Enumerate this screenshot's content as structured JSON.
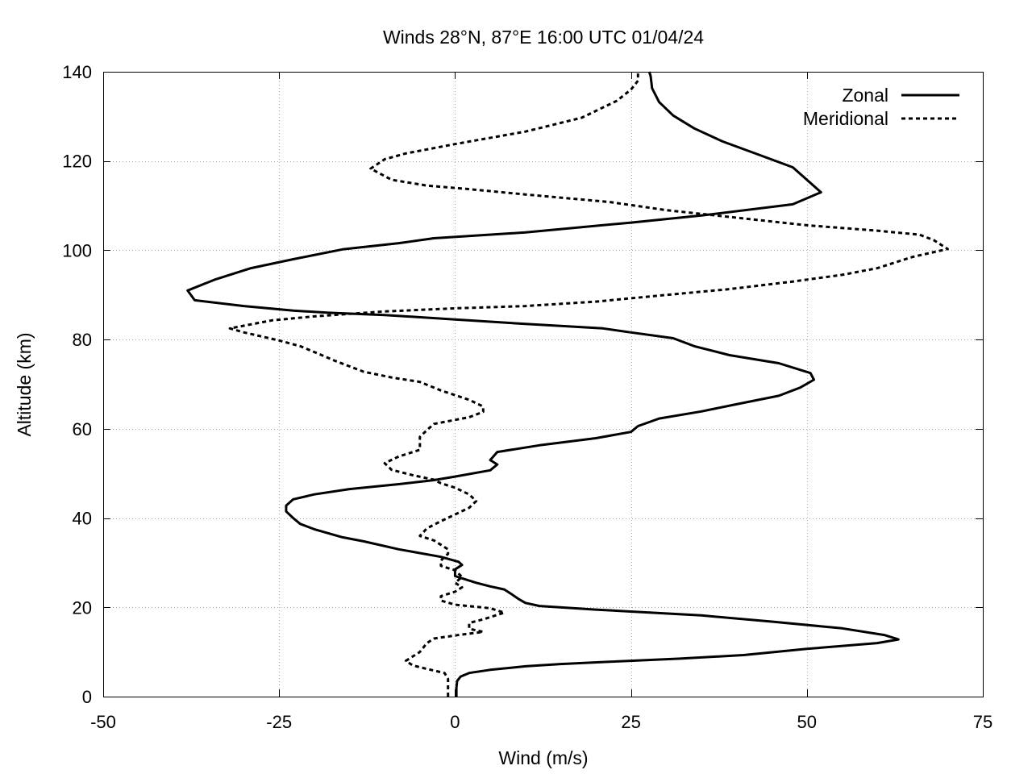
{
  "chart_data": {
    "type": "line",
    "title": "Winds 28°N, 87°E 16:00 UTC 01/04/24",
    "xlabel": "Wind (m/s)",
    "ylabel": "Altitude (km)",
    "xlim": [
      -50,
      75
    ],
    "ylim": [
      0,
      140
    ],
    "xticks": [
      -50,
      -25,
      0,
      25,
      50,
      75
    ],
    "yticks": [
      0,
      20,
      40,
      60,
      80,
      100,
      120,
      140
    ],
    "xtick_labels": [
      "-50",
      "-25",
      "0",
      "25",
      "50",
      "75"
    ],
    "ytick_labels": [
      "0",
      "20",
      "40",
      "60",
      "80",
      "100",
      "120",
      "140"
    ],
    "grid": true,
    "legend": "top-right",
    "series": [
      {
        "name": "Zonal",
        "style": "solid",
        "color": "#000000",
        "points": [
          [
            0.2,
            0
          ],
          [
            0.2,
            2
          ],
          [
            0.3,
            3.5
          ],
          [
            0.8,
            4.5
          ],
          [
            2,
            5.3
          ],
          [
            5,
            6
          ],
          [
            10,
            6.8
          ],
          [
            15,
            7.3
          ],
          [
            22,
            7.8
          ],
          [
            32,
            8.5
          ],
          [
            41,
            9.3
          ],
          [
            50,
            10.7
          ],
          [
            60,
            12
          ],
          [
            63,
            12.8
          ],
          [
            61,
            13.8
          ],
          [
            55,
            15.3
          ],
          [
            45,
            16.8
          ],
          [
            35,
            18.2
          ],
          [
            20,
            19.5
          ],
          [
            12,
            20.3
          ],
          [
            10,
            21
          ],
          [
            9,
            21.9
          ],
          [
            8,
            23
          ],
          [
            7,
            24
          ],
          [
            5,
            24.7
          ],
          [
            3,
            25.5
          ],
          [
            1,
            26.5
          ],
          [
            0,
            27
          ],
          [
            0,
            28.5
          ],
          [
            1,
            29.5
          ],
          [
            0.5,
            30.2
          ],
          [
            -2,
            31.3
          ],
          [
            -8,
            33
          ],
          [
            -13,
            34.8
          ],
          [
            -16,
            35.7
          ],
          [
            -20,
            37.5
          ],
          [
            -22,
            38.7
          ],
          [
            -23,
            40
          ],
          [
            -24,
            41.5
          ],
          [
            -24,
            42.8
          ],
          [
            -23,
            44.2
          ],
          [
            -20,
            45.3
          ],
          [
            -15,
            46.5
          ],
          [
            -8,
            47.6
          ],
          [
            -3,
            48.5
          ],
          [
            0,
            49.3
          ],
          [
            5,
            50.7
          ],
          [
            6,
            52
          ],
          [
            5,
            53
          ],
          [
            6,
            54.8
          ],
          [
            12,
            56.3
          ],
          [
            20,
            57.9
          ],
          [
            25,
            59.3
          ],
          [
            26,
            60.6
          ],
          [
            29,
            62.3
          ],
          [
            35,
            63.9
          ],
          [
            40,
            65.5
          ],
          [
            46,
            67.4
          ],
          [
            49,
            69.2
          ],
          [
            51,
            71
          ],
          [
            50.5,
            72.5
          ],
          [
            46,
            74.7
          ],
          [
            39,
            76.5
          ],
          [
            34,
            78.5
          ],
          [
            31,
            80.3
          ],
          [
            25,
            81.6
          ],
          [
            21,
            82.5
          ],
          [
            10,
            83.5
          ],
          [
            0,
            84.5
          ],
          [
            -10,
            85.5
          ],
          [
            -18,
            86
          ],
          [
            -23,
            86.5
          ],
          [
            -30,
            87.5
          ],
          [
            -37,
            88.8
          ],
          [
            -38,
            91
          ],
          [
            -34,
            93.5
          ],
          [
            -29,
            96
          ],
          [
            -23,
            98
          ],
          [
            -16,
            100.2
          ],
          [
            -8,
            101.6
          ],
          [
            -3,
            102.7
          ],
          [
            10,
            104
          ],
          [
            25,
            106.2
          ],
          [
            35,
            107.8
          ],
          [
            48,
            110.3
          ],
          [
            52,
            113
          ],
          [
            50,
            115.8
          ],
          [
            48,
            118.6
          ],
          [
            43,
            121.5
          ],
          [
            38,
            124.4
          ],
          [
            34,
            127.3
          ],
          [
            31,
            130.2
          ],
          [
            29,
            133.2
          ],
          [
            28,
            136.3
          ],
          [
            27.8,
            139
          ],
          [
            27.6,
            140
          ]
        ]
      },
      {
        "name": "Meridional",
        "style": "dashed",
        "color": "#000000",
        "points": [
          [
            -1,
            0
          ],
          [
            -1,
            2
          ],
          [
            -1,
            4
          ],
          [
            -1.5,
            5.3
          ],
          [
            -4,
            6.2
          ],
          [
            -6,
            7
          ],
          [
            -7,
            8
          ],
          [
            -5,
            10
          ],
          [
            -4,
            12
          ],
          [
            -3,
            13
          ],
          [
            0,
            13.7
          ],
          [
            4,
            14.5
          ],
          [
            2,
            15.2
          ],
          [
            2,
            16.5
          ],
          [
            4,
            17.3
          ],
          [
            7,
            18.8
          ],
          [
            5,
            19.8
          ],
          [
            0,
            20.6
          ],
          [
            -2,
            21.5
          ],
          [
            -2,
            22.5
          ],
          [
            0,
            23.5
          ],
          [
            1,
            24.5
          ],
          [
            0,
            25.5
          ],
          [
            1,
            26.8
          ],
          [
            0,
            28.3
          ],
          [
            -2,
            29.3
          ],
          [
            -2,
            30.5
          ],
          [
            -1,
            32
          ],
          [
            -1,
            33
          ],
          [
            -3,
            35
          ],
          [
            -5,
            36
          ],
          [
            -4,
            37.7
          ],
          [
            -2,
            39.3
          ],
          [
            0,
            40.8
          ],
          [
            2,
            42.3
          ],
          [
            3,
            43.8
          ],
          [
            2,
            45.3
          ],
          [
            0,
            46.8
          ],
          [
            -2,
            47.8
          ],
          [
            -3,
            48.6
          ],
          [
            -6,
            49.6
          ],
          [
            -9,
            50.8
          ],
          [
            -10,
            52.3
          ],
          [
            -8,
            53.8
          ],
          [
            -5,
            55.3
          ],
          [
            -5,
            56.7
          ],
          [
            -5,
            58.2
          ],
          [
            -4,
            59.7
          ],
          [
            -3,
            61.1
          ],
          [
            2,
            62.6
          ],
          [
            4,
            63.8
          ],
          [
            4,
            65
          ],
          [
            2,
            66.5
          ],
          [
            -2,
            68.6
          ],
          [
            -5,
            70.5
          ],
          [
            -9,
            71.5
          ],
          [
            -13,
            72.8
          ],
          [
            -17,
            75.2
          ],
          [
            -20,
            77.2
          ],
          [
            -22,
            78.5
          ],
          [
            -25,
            79.8
          ],
          [
            -30,
            81.6
          ],
          [
            -32,
            82.5
          ],
          [
            -26,
            84.3
          ],
          [
            -20,
            85.2
          ],
          [
            -10,
            86.3
          ],
          [
            0,
            87
          ],
          [
            10,
            87.5
          ],
          [
            20,
            88.5
          ],
          [
            30,
            90
          ],
          [
            39,
            91.3
          ],
          [
            48,
            93
          ],
          [
            55,
            94.5
          ],
          [
            60,
            96
          ],
          [
            65,
            98.5
          ],
          [
            70,
            100.3
          ],
          [
            68,
            102.3
          ],
          [
            66,
            103.5
          ],
          [
            60,
            104.4
          ],
          [
            50,
            105.6
          ],
          [
            40,
            107.3
          ],
          [
            30,
            109
          ],
          [
            22,
            110.8
          ],
          [
            10,
            112.5
          ],
          [
            2,
            113.7
          ],
          [
            -4,
            114.5
          ],
          [
            -9,
            115.8
          ],
          [
            -12,
            118.3
          ],
          [
            -10,
            120.4
          ],
          [
            -7,
            121.7
          ],
          [
            0,
            123.8
          ],
          [
            10,
            126.6
          ],
          [
            18,
            129.7
          ],
          [
            23,
            133.5
          ],
          [
            25,
            136
          ],
          [
            26,
            138
          ],
          [
            26,
            140
          ]
        ]
      }
    ]
  }
}
